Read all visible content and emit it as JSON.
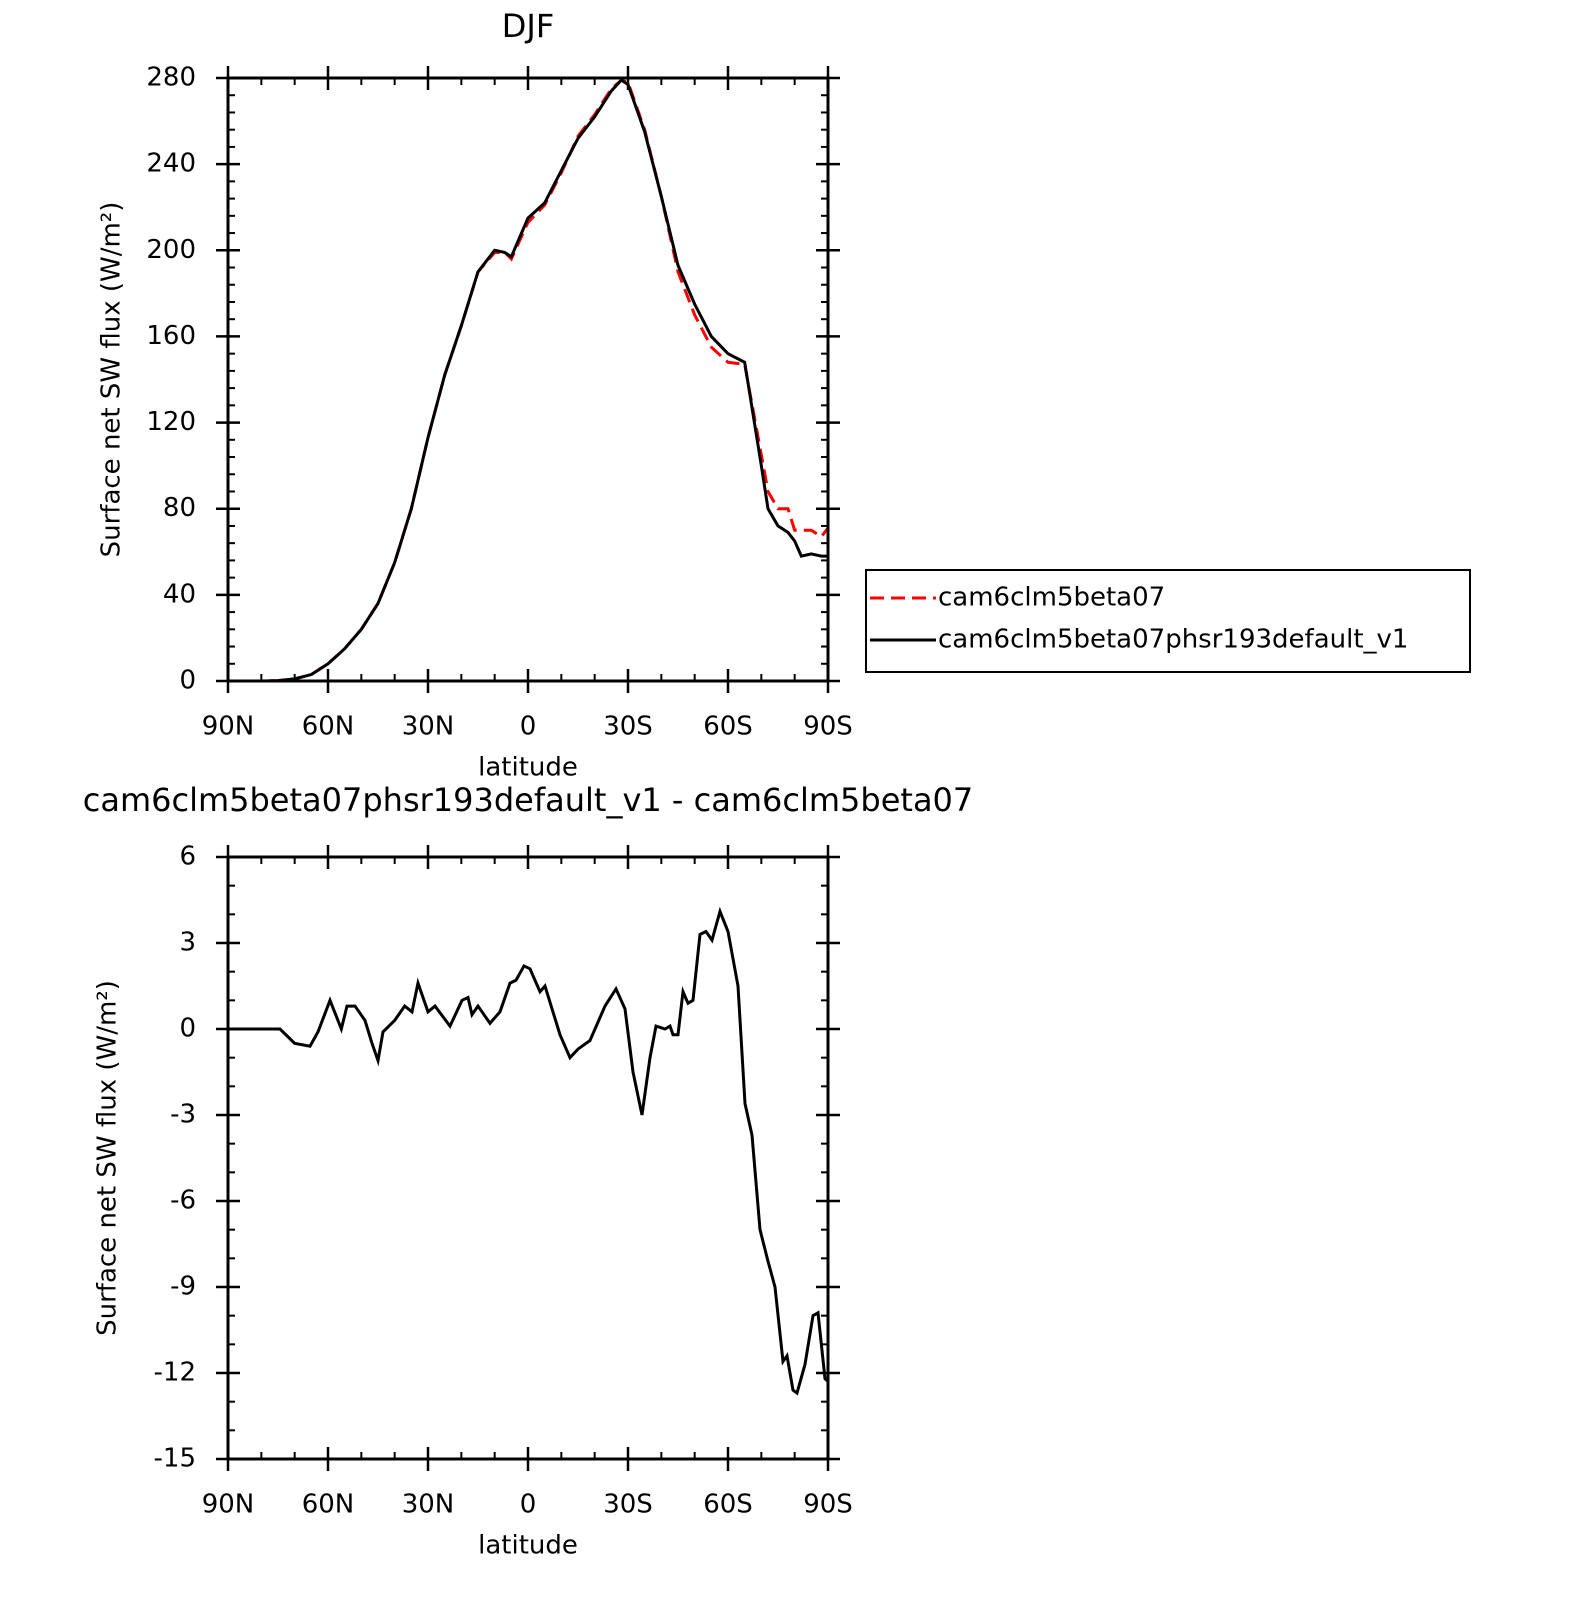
{
  "chart_data": [
    {
      "type": "line",
      "title": "DJF",
      "xlabel": "latitude",
      "ylabel": "Surface net SW flux (W/m²)",
      "x": [
        90,
        85,
        80,
        75,
        70,
        65,
        60,
        55,
        50,
        45,
        40,
        35,
        30,
        25,
        20,
        15,
        10,
        7,
        5,
        0,
        -5,
        -10,
        -15,
        -20,
        -25,
        -28,
        -30,
        -35,
        -40,
        -45,
        -50,
        -55,
        -60,
        -65,
        -70,
        -72,
        -75,
        -78,
        -80,
        -82,
        -85,
        -88,
        -90
      ],
      "series": [
        {
          "name": "cam6clm5beta07",
          "color": "#ff0000",
          "linestyle": "dashed",
          "values": [
            0,
            0,
            0,
            0.2,
            1,
            3,
            8,
            15,
            24,
            36,
            55,
            80,
            113,
            142,
            165,
            190,
            199,
            199,
            196,
            213,
            221,
            236,
            253,
            263,
            275,
            279,
            278,
            256,
            225,
            190,
            170,
            155,
            148,
            147,
            105,
            88,
            80,
            80,
            70,
            70,
            70,
            67,
            71
          ]
        },
        {
          "name": "cam6clm5beta07phsr193default_v1",
          "color": "#000000",
          "linestyle": "solid",
          "values": [
            0,
            0,
            0,
            0.2,
            1,
            3,
            8,
            15,
            24,
            36,
            55,
            80,
            113,
            142,
            165,
            190,
            200,
            199,
            197,
            215,
            222,
            237,
            252,
            262,
            274,
            279,
            277,
            255,
            225,
            193,
            175,
            160,
            152,
            148,
            100,
            80,
            72,
            69,
            65,
            58,
            59,
            58,
            58
          ]
        }
      ],
      "xlim": [
        90,
        -90
      ],
      "xticks": [
        {
          "value": 90,
          "label": "90N"
        },
        {
          "value": 60,
          "label": "60N"
        },
        {
          "value": 30,
          "label": "30N"
        },
        0,
        {
          "value": -30,
          "label": "30S"
        },
        {
          "value": -60,
          "label": "60S"
        },
        {
          "value": -90,
          "label": "90S"
        }
      ],
      "ylim": [
        0,
        280
      ],
      "yticks": [
        0,
        40,
        80,
        120,
        160,
        200,
        240,
        280
      ]
    },
    {
      "type": "line",
      "title": "cam6clm5beta07phsr193default_v1 - cam6clm5beta07",
      "xlabel": "latitude",
      "ylabel": "Surface net SW flux (W/m²)",
      "x": [
        90,
        74.4,
        70,
        65.4,
        63,
        59.4,
        56,
        54.3,
        51.9,
        48.9,
        46.8,
        45,
        43.5,
        40,
        37,
        34.8,
        33,
        30,
        27.9,
        23.4,
        19.8,
        18,
        16.8,
        15,
        11.4,
        8.4,
        5.4,
        3.6,
        1.2,
        -0.6,
        -3.6,
        -5.1,
        -9.6,
        -12.6,
        -15,
        -18.6,
        -23.1,
        -26.4,
        -29.1,
        -31.5,
        -34.2,
        -36.6,
        -38.4,
        -41.1,
        -42.6,
        -43.5,
        -45,
        -46.5,
        -48,
        -49.5,
        -51.6,
        -53.4,
        -55.2,
        -57.6,
        -60,
        -63,
        -65.1,
        -67.2,
        -69.6,
        -72,
        -74.1,
        -76.5,
        -77.7,
        -79.5,
        -80.7,
        -83.1,
        -85.5,
        -87,
        -89.1,
        -90
      ],
      "series": [
        {
          "color": "#000000",
          "linestyle": "solid",
          "values": [
            0,
            0,
            -0.5,
            -0.6,
            -0.1,
            1.0,
            0,
            0.8,
            0.8,
            0.3,
            -0.5,
            -1.1,
            -0.1,
            0.3,
            0.8,
            0.6,
            1.6,
            0.6,
            0.8,
            0.1,
            1.0,
            1.1,
            0.5,
            0.8,
            0.2,
            0.6,
            1.6,
            1.7,
            2.2,
            2.1,
            1.3,
            1.5,
            -0.2,
            -1.0,
            -0.7,
            -0.4,
            0.8,
            1.4,
            0.7,
            -1.5,
            -3.0,
            -1.0,
            0.1,
            0.0,
            0.1,
            -0.2,
            -0.2,
            1.3,
            0.9,
            1.0,
            3.3,
            3.4,
            3.1,
            4.1,
            3.4,
            1.5,
            -2.6,
            -3.7,
            -7.0,
            -8.1,
            -9.0,
            -11.6,
            -11.4,
            -12.6,
            -12.7,
            -11.7,
            -10.0,
            -9.9,
            -12.2,
            -12.3
          ]
        }
      ],
      "xlim": [
        90,
        -90
      ],
      "xticks": [
        {
          "value": 90,
          "label": "90N"
        },
        {
          "value": 60,
          "label": "60N"
        },
        {
          "value": 30,
          "label": "30N"
        },
        0,
        {
          "value": -30,
          "label": "30S"
        },
        {
          "value": -60,
          "label": "60S"
        },
        {
          "value": -90,
          "label": "90S"
        }
      ],
      "ylim": [
        -15,
        6
      ],
      "yticks": [
        -15,
        -12,
        -9,
        -6,
        -3,
        0,
        3,
        6
      ]
    }
  ]
}
